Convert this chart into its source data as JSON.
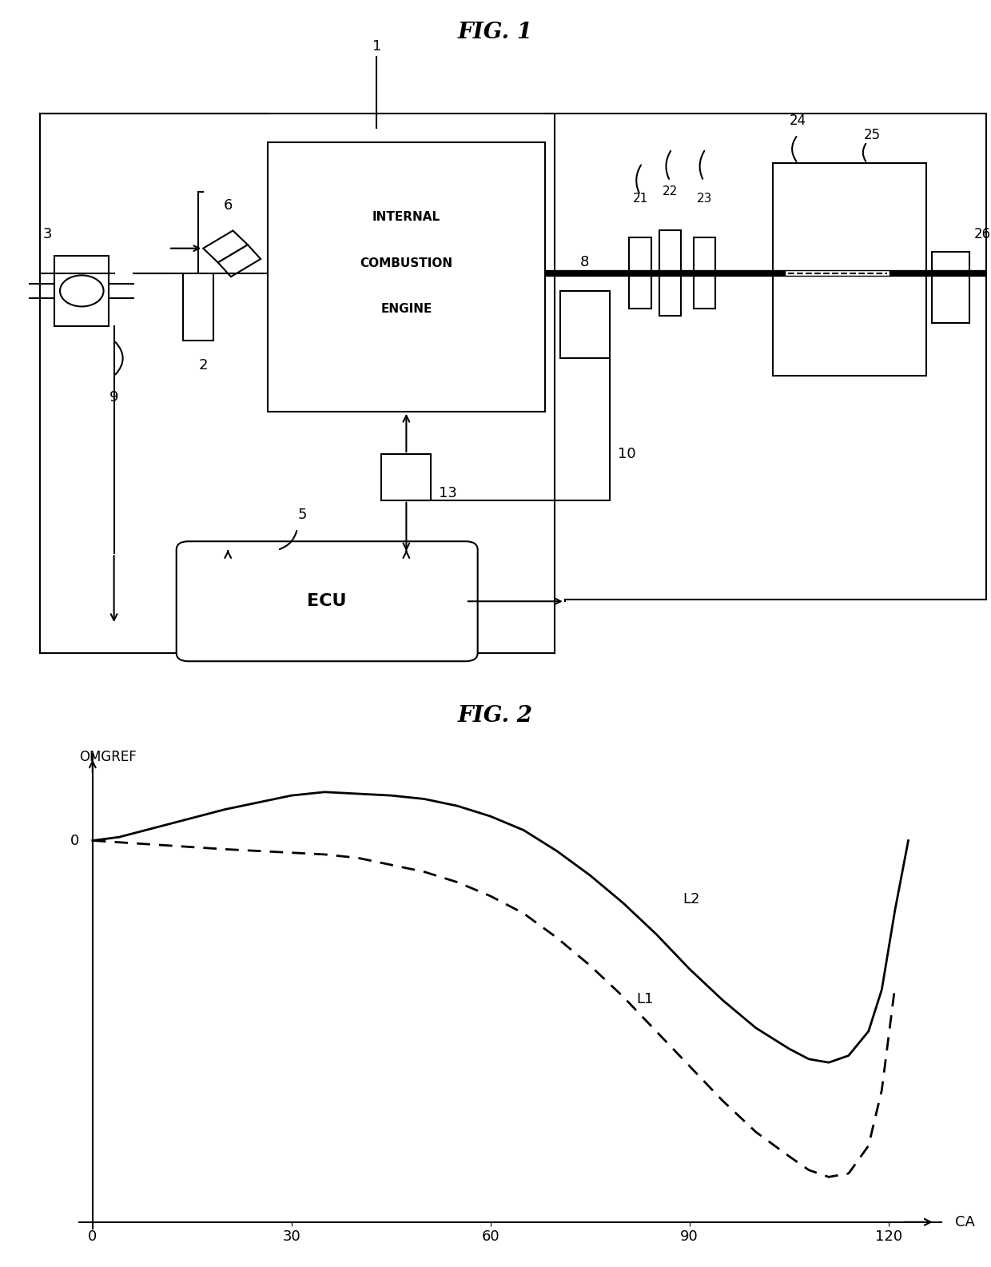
{
  "fig1_title": "FIG. 1",
  "fig2_title": "FIG. 2",
  "background_color": "#ffffff",
  "line_color": "#000000",
  "fig2": {
    "xlabel": "CA",
    "ylabel": "OMGREF",
    "xticks": [
      0,
      30,
      60,
      90,
      120
    ],
    "label_L1": "L1",
    "label_L2": "L2",
    "L2_x": [
      0,
      4,
      8,
      12,
      16,
      20,
      25,
      30,
      35,
      40,
      45,
      50,
      55,
      60,
      65,
      70,
      75,
      80,
      85,
      90,
      95,
      100,
      105,
      108,
      111,
      114,
      117,
      119,
      121,
      123
    ],
    "L2_y": [
      0.0,
      0.01,
      0.03,
      0.05,
      0.07,
      0.09,
      0.11,
      0.13,
      0.14,
      0.135,
      0.13,
      0.12,
      0.1,
      0.07,
      0.03,
      -0.03,
      -0.1,
      -0.18,
      -0.27,
      -0.37,
      -0.46,
      -0.54,
      -0.6,
      -0.63,
      -0.64,
      -0.62,
      -0.55,
      -0.43,
      -0.2,
      0.0
    ],
    "L1_x": [
      0,
      4,
      8,
      12,
      16,
      20,
      25,
      30,
      35,
      40,
      45,
      50,
      55,
      60,
      65,
      70,
      75,
      80,
      85,
      90,
      95,
      100,
      105,
      108,
      111,
      114,
      117,
      119,
      121
    ],
    "L1_y": [
      0.0,
      -0.005,
      -0.01,
      -0.015,
      -0.02,
      -0.025,
      -0.03,
      -0.035,
      -0.04,
      -0.05,
      -0.07,
      -0.09,
      -0.12,
      -0.16,
      -0.21,
      -0.28,
      -0.36,
      -0.45,
      -0.55,
      -0.65,
      -0.75,
      -0.84,
      -0.91,
      -0.95,
      -0.97,
      -0.96,
      -0.88,
      -0.72,
      -0.42
    ]
  }
}
